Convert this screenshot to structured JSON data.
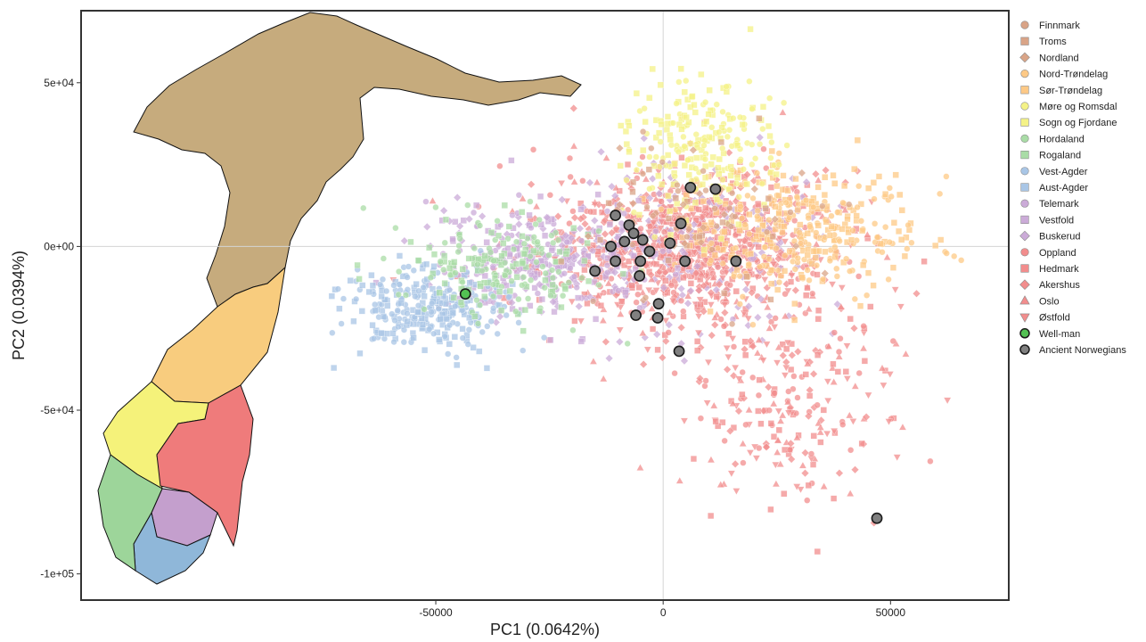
{
  "chart_data": {
    "type": "scatter",
    "xlabel": "PC1 (0.0642%)",
    "ylabel": "PC2 (0.0394%)",
    "xlim": [
      -128000,
      76000
    ],
    "ylim": [
      -108000,
      72000
    ],
    "x_ticks": [
      -50000,
      0,
      50000
    ],
    "x_tick_labels": [
      "-50000",
      "0",
      "50000"
    ],
    "y_ticks": [
      50000,
      0,
      -50000,
      -100000
    ],
    "y_tick_labels": [
      "5e+04",
      "0e+00",
      "-5e+04",
      "-1e+05"
    ],
    "zero_lines": true,
    "grid": false,
    "legend_position": "right",
    "inset_map": "Norway counties (left)",
    "series": [
      {
        "name": "Finnmark",
        "shape": "circle",
        "color": "#d9a487",
        "points": []
      },
      {
        "name": "Troms",
        "shape": "square",
        "color": "#d9a487",
        "points": []
      },
      {
        "name": "Nordland",
        "shape": "diamond",
        "color": "#d9a487",
        "points": []
      },
      {
        "name": "Nord-Trøndelag",
        "shape": "circle",
        "color": "#fdc986",
        "points": []
      },
      {
        "name": "Sør-Trøndelag",
        "shape": "square",
        "color": "#fdc986",
        "points": []
      },
      {
        "name": "Møre og Romsdal",
        "shape": "circle",
        "color": "#f4f287",
        "points": []
      },
      {
        "name": "Sogn og Fjordane",
        "shape": "square",
        "color": "#f4f287",
        "points": []
      },
      {
        "name": "Hordaland",
        "shape": "circle",
        "color": "#a9dca6",
        "points": []
      },
      {
        "name": "Rogaland",
        "shape": "square",
        "color": "#a9dca6",
        "points": []
      },
      {
        "name": "Vest-Agder",
        "shape": "circle",
        "color": "#a9c6e6",
        "points": []
      },
      {
        "name": "Aust-Agder",
        "shape": "square",
        "color": "#a9c6e6",
        "points": []
      },
      {
        "name": "Telemark",
        "shape": "circle",
        "color": "#cbabd8",
        "points": []
      },
      {
        "name": "Vestfold",
        "shape": "square",
        "color": "#cbabd8",
        "points": []
      },
      {
        "name": "Buskerud",
        "shape": "diamond",
        "color": "#cbabd8",
        "points": []
      },
      {
        "name": "Oppland",
        "shape": "circle",
        "color": "#f28d8d",
        "points": []
      },
      {
        "name": "Hedmark",
        "shape": "square",
        "color": "#f28d8d",
        "points": []
      },
      {
        "name": "Akershus",
        "shape": "diamond",
        "color": "#f28d8d",
        "points": []
      },
      {
        "name": "Oslo",
        "shape": "triangle",
        "color": "#f28d8d",
        "points": []
      },
      {
        "name": "Østfold",
        "shape": "triangle-down",
        "color": "#f28d8d",
        "points": []
      },
      {
        "name": "Well-man",
        "shape": "circle",
        "color": "#53c153",
        "points": [
          [
            -43500,
            -14500
          ]
        ]
      },
      {
        "name": "Ancient Norwegians",
        "shape": "circle",
        "color": "#808080",
        "points": [
          [
            6000,
            18000
          ],
          [
            11500,
            17500
          ],
          [
            -10500,
            9500
          ],
          [
            -7500,
            6500
          ],
          [
            -6500,
            4000
          ],
          [
            3900,
            7000
          ],
          [
            -11500,
            0
          ],
          [
            -8500,
            1500
          ],
          [
            -4500,
            2000
          ],
          [
            1500,
            1000
          ],
          [
            -3000,
            -1500
          ],
          [
            -10500,
            -4500
          ],
          [
            -5000,
            -4500
          ],
          [
            4800,
            -4500
          ],
          [
            16000,
            -4500
          ],
          [
            -15000,
            -7500
          ],
          [
            -5200,
            -9000
          ],
          [
            -1000,
            -17500
          ],
          [
            -6000,
            -21000
          ],
          [
            -1200,
            -21800
          ],
          [
            3500,
            -32000
          ],
          [
            47000,
            -83000
          ]
        ]
      }
    ],
    "background_points_note": "dense cloud of several thousand semi-transparent modern samples colored by county"
  }
}
